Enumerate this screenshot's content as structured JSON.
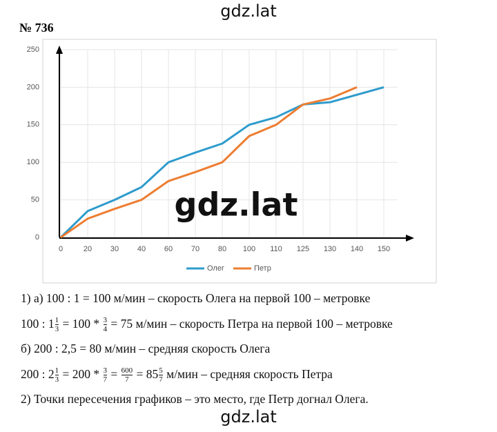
{
  "header": {
    "site": "gdz.lat",
    "number": "№ 736"
  },
  "chart_data": {
    "type": "line",
    "categories": [
      "0",
      "20",
      "30",
      "40",
      "60",
      "70",
      "80",
      "100",
      "110",
      "125",
      "130",
      "140",
      "150"
    ],
    "series": [
      {
        "name": "Олег",
        "color": "#2e9bcc",
        "values": [
          0,
          35,
          50,
          67,
          100,
          113,
          125,
          150,
          160,
          177,
          180,
          190,
          200
        ]
      },
      {
        "name": "Петр",
        "color": "#ed7d31",
        "values": [
          0,
          25,
          38,
          50,
          75,
          87,
          100,
          135,
          150,
          177,
          185,
          200,
          null
        ]
      }
    ],
    "ylim": [
      0,
      250
    ],
    "yticks": [
      0,
      50,
      100,
      150,
      200,
      250
    ],
    "grid": true,
    "legend": "bottom"
  },
  "watermark": "gdz.lat",
  "solution": [
    {
      "parts": [
        "1) а) 100 : 1 = 100 м/мин – скорость Олега на первой 100 – метровке"
      ]
    },
    {
      "parts": [
        "100 : 1",
        {
          "num": "1",
          "den": "3"
        },
        " = 100 * ",
        {
          "num": "3",
          "den": "4"
        },
        " = 75 м/мин – скорость Петра на первой 100 – метровке"
      ]
    },
    {
      "parts": [
        "б) 200 : 2,5 = 80 м/мин – средняя скорость Олега"
      ]
    },
    {
      "parts": [
        "200 : 2",
        {
          "num": "1",
          "den": "3"
        },
        " = 200 * ",
        {
          "num": "3",
          "den": "7"
        },
        " = ",
        {
          "num": "600",
          "den": "7"
        },
        " = 85",
        {
          "num": "5",
          "den": "7"
        },
        " м/мин – средняя скорость Петра"
      ]
    },
    {
      "parts": [
        "2) Точки пересечения графиков – это место, где Петр догнал Олега."
      ]
    }
  ],
  "footer": "gdz.lat"
}
